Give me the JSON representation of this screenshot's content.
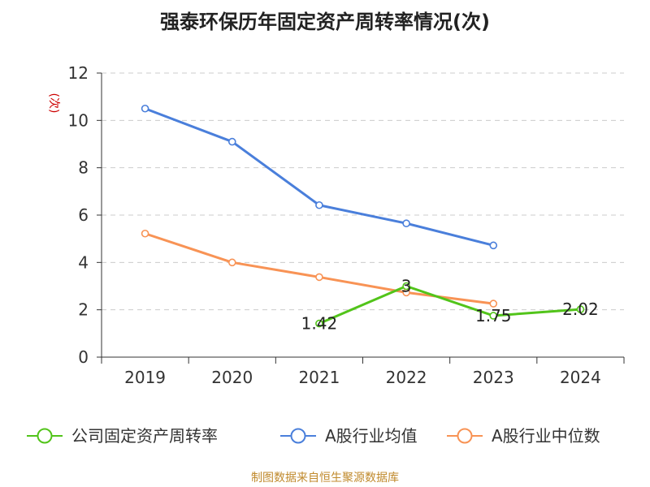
{
  "chart_data": {
    "type": "line",
    "title": "强泰环保历年固定资产周转率情况(次)",
    "ylabel": "(次)",
    "xlabel": "",
    "categories": [
      "2019",
      "2020",
      "2021",
      "2022",
      "2023",
      "2024"
    ],
    "ylim": [
      0,
      12
    ],
    "yticks": [
      0,
      2,
      4,
      6,
      8,
      10,
      12
    ],
    "grid": true,
    "legend_position": "bottom",
    "series": [
      {
        "name": "公司固定资产周转率",
        "color": "#52c41a",
        "values": [
          null,
          null,
          1.42,
          3,
          1.75,
          2.02
        ],
        "labels": [
          null,
          null,
          "1.42",
          "3",
          "1.75",
          "2.02"
        ]
      },
      {
        "name": "A股行业均值",
        "color": "#4a7fdb",
        "values": [
          10.5,
          9.1,
          6.42,
          5.65,
          4.72,
          null
        ],
        "labels": [
          null,
          null,
          null,
          null,
          null,
          null
        ]
      },
      {
        "name": "A股行业中位数",
        "color": "#f89355",
        "values": [
          5.22,
          4.0,
          3.38,
          2.73,
          2.26,
          null
        ],
        "labels": [
          null,
          null,
          null,
          null,
          null,
          null
        ]
      }
    ],
    "source": "制图数据来自恒生聚源数据库",
    "source_color": "#c08a2d",
    "ylabel_color": "#cc0000",
    "grid_color": "#cccccc",
    "axis_color": "#333333"
  }
}
